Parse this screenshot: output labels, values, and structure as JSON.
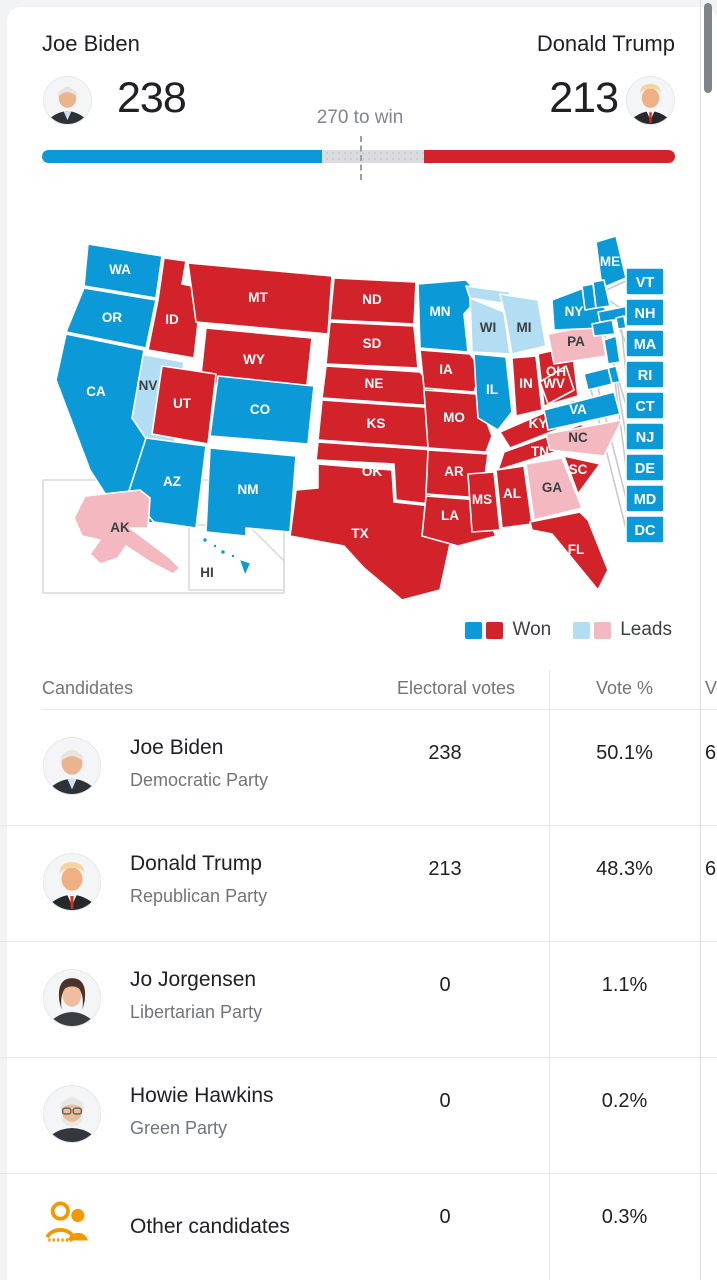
{
  "header": {
    "left_candidate": {
      "name": "Joe Biden",
      "electoral_votes": "238"
    },
    "right_candidate": {
      "name": "Donald Trump",
      "electoral_votes": "213"
    },
    "threshold_label": "270 to win"
  },
  "bar": {
    "dem_pct": 44.24,
    "rep_pct": 39.59,
    "threshold_pct": 50.19
  },
  "colors": {
    "dem_won": "#0b99d8",
    "rep_won": "#d2232a",
    "dem_leads": "#b3ddf2",
    "rep_leads": "#f4b9c0",
    "other_icon_orange": "#f29900"
  },
  "map": {
    "legend": [
      {
        "label": "Won",
        "swatches": [
          "dem_won",
          "rep_won"
        ]
      },
      {
        "label": "Leads",
        "swatches": [
          "dem_leads",
          "rep_leads"
        ]
      }
    ],
    "side_labels": [
      "VT",
      "NH",
      "MA",
      "RI",
      "CT",
      "NJ",
      "DE",
      "MD",
      "DC"
    ],
    "states": [
      {
        "id": "WA",
        "status": "dem_won"
      },
      {
        "id": "OR",
        "status": "dem_won"
      },
      {
        "id": "CA",
        "status": "dem_won"
      },
      {
        "id": "NV",
        "status": "dem_leads"
      },
      {
        "id": "ID",
        "status": "rep_won"
      },
      {
        "id": "MT",
        "status": "rep_won"
      },
      {
        "id": "WY",
        "status": "rep_won"
      },
      {
        "id": "UT",
        "status": "rep_won"
      },
      {
        "id": "CO",
        "status": "dem_won"
      },
      {
        "id": "AZ",
        "status": "dem_won"
      },
      {
        "id": "NM",
        "status": "dem_won"
      },
      {
        "id": "ND",
        "status": "rep_won"
      },
      {
        "id": "SD",
        "status": "rep_won"
      },
      {
        "id": "NE",
        "status": "rep_won"
      },
      {
        "id": "KS",
        "status": "rep_won"
      },
      {
        "id": "OK",
        "status": "rep_won"
      },
      {
        "id": "TX",
        "status": "rep_won"
      },
      {
        "id": "MN",
        "status": "dem_won"
      },
      {
        "id": "IA",
        "status": "rep_won"
      },
      {
        "id": "MO",
        "status": "rep_won"
      },
      {
        "id": "AR",
        "status": "rep_won"
      },
      {
        "id": "LA",
        "status": "rep_won"
      },
      {
        "id": "WI",
        "status": "dem_leads"
      },
      {
        "id": "IL",
        "status": "dem_won"
      },
      {
        "id": "MI",
        "status": "dem_leads"
      },
      {
        "id": "IN",
        "status": "rep_won"
      },
      {
        "id": "OH",
        "status": "rep_won"
      },
      {
        "id": "KY",
        "status": "rep_won"
      },
      {
        "id": "TN",
        "status": "rep_won"
      },
      {
        "id": "MS",
        "status": "rep_won"
      },
      {
        "id": "AL",
        "status": "rep_won"
      },
      {
        "id": "GA",
        "status": "rep_leads"
      },
      {
        "id": "SC",
        "status": "rep_won"
      },
      {
        "id": "NC",
        "status": "rep_leads"
      },
      {
        "id": "VA",
        "status": "dem_won"
      },
      {
        "id": "WV",
        "status": "rep_won"
      },
      {
        "id": "PA",
        "status": "rep_leads"
      },
      {
        "id": "NY",
        "status": "dem_won"
      },
      {
        "id": "ME",
        "status": "dem_won"
      },
      {
        "id": "VT",
        "status": "dem_won"
      },
      {
        "id": "NH",
        "status": "dem_won"
      },
      {
        "id": "MA",
        "status": "dem_won"
      },
      {
        "id": "RI",
        "status": "dem_won"
      },
      {
        "id": "CT",
        "status": "dem_won"
      },
      {
        "id": "NJ",
        "status": "dem_won"
      },
      {
        "id": "DE",
        "status": "dem_won"
      },
      {
        "id": "MD",
        "status": "dem_won"
      },
      {
        "id": "DC",
        "status": "dem_won"
      },
      {
        "id": "FL",
        "status": "rep_won"
      },
      {
        "id": "AK",
        "status": "rep_leads"
      },
      {
        "id": "HI",
        "status": "dem_won"
      }
    ]
  },
  "table": {
    "headers": [
      "Candidates",
      "Electoral votes",
      "Vote %",
      "Votes"
    ],
    "rows": [
      {
        "name": "Joe Biden",
        "party": "Democratic Party",
        "electoral_votes": "238",
        "vote_pct": "50.1%",
        "votes_clipped": "6",
        "avatar": "avatar-biden"
      },
      {
        "name": "Donald Trump",
        "party": "Republican Party",
        "electoral_votes": "213",
        "vote_pct": "48.3%",
        "votes_clipped": "6",
        "avatar": "avatar-trump"
      },
      {
        "name": "Jo Jorgensen",
        "party": "Libertarian Party",
        "electoral_votes": "0",
        "vote_pct": "1.1%",
        "votes_clipped": "",
        "avatar": "avatar-jorgensen"
      },
      {
        "name": "Howie Hawkins",
        "party": "Green Party",
        "electoral_votes": "0",
        "vote_pct": "0.2%",
        "votes_clipped": "",
        "avatar": "avatar-hawkins"
      },
      {
        "name": "Other candidates",
        "party": "",
        "electoral_votes": "0",
        "vote_pct": "0.3%",
        "votes_clipped": "",
        "avatar": "people-icon"
      }
    ]
  }
}
